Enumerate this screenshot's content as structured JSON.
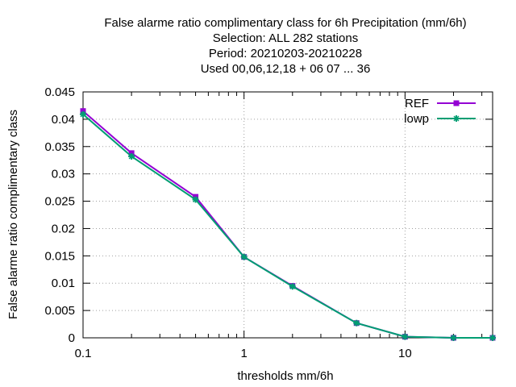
{
  "chart_data": {
    "type": "line",
    "title_lines": [
      "False alarme ratio complimentary class  for 6h Precipitation (mm/6h)",
      "Selection: ALL     282 stations",
      "Period: 20210203-20210228",
      "Used  00,06,12,18  + 06 07 ... 36"
    ],
    "xlabel": "thresholds mm/6h",
    "ylabel": "False alarme ratio complimentary class",
    "x_scale": "log",
    "xlim": [
      0.1,
      35
    ],
    "ylim": [
      0,
      0.045
    ],
    "x_ticks": [
      "0.1",
      "1",
      "10"
    ],
    "y_ticks": [
      "0",
      "0.005",
      "0.01",
      "0.015",
      "0.02",
      "0.025",
      "0.03",
      "0.035",
      "0.04",
      "0.045"
    ],
    "x": [
      0.1,
      0.2,
      0.5,
      1,
      2,
      5,
      10,
      20,
      35
    ],
    "series": [
      {
        "name": "REF",
        "color": "#9400d3",
        "marker": "square",
        "values": [
          0.0415,
          0.0338,
          0.0258,
          0.0148,
          0.0095,
          0.0027,
          0.0002,
          0.0,
          0.0
        ]
      },
      {
        "name": "lowp",
        "color": "#009e73",
        "marker": "star",
        "values": [
          0.0409,
          0.0332,
          0.0253,
          0.0148,
          0.0094,
          0.0027,
          0.0002,
          0.0,
          0.0
        ]
      }
    ],
    "grid": true,
    "legend_position": "top-right"
  }
}
